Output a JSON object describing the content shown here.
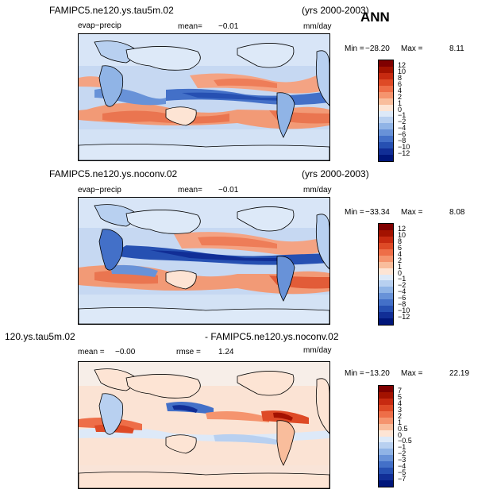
{
  "season": "ANN",
  "panels": [
    {
      "title": "FAMIPC5.ne120.ys.tau5m.02",
      "years": "(yrs 2000-2003)",
      "variable": "evap−precip",
      "stat_label": "mean=",
      "stat_value": "−0.01",
      "units": "mm/day",
      "min_label": "Min =",
      "min_value": "−28.20",
      "max_label": "Max =",
      "max_value": "8.11",
      "colorbar": [
        "12",
        "10",
        "8",
        "6",
        "4",
        "2",
        "1",
        "0",
        "−1",
        "−2",
        "−4",
        "−6",
        "−8",
        "−10",
        "−12"
      ]
    },
    {
      "title": "FAMIPC5.ne120.ys.noconv.02",
      "years": "(yrs 2000-2003)",
      "variable": "evap−precip",
      "stat_label": "mean=",
      "stat_value": "−0.01",
      "units": "mm/day",
      "min_label": "Min =",
      "min_value": "−33.34",
      "max_label": "Max =",
      "max_value": "8.08",
      "colorbar": [
        "12",
        "10",
        "8",
        "6",
        "4",
        "2",
        "1",
        "0",
        "−1",
        "−2",
        "−4",
        "−6",
        "−8",
        "−10",
        "−12"
      ]
    },
    {
      "title": "120.ys.tau5m.02",
      "title2": "- FAMIPC5.ne120.ys.noconv.02",
      "stat_label": "mean =",
      "stat_value": "−0.00",
      "rmse_label": "rmse =",
      "rmse_value": "1.24",
      "units": "mm/day",
      "min_label": "Min =",
      "min_value": "−13.20",
      "max_label": "Max =",
      "max_value": "22.19",
      "colorbar": [
        "7",
        "5",
        "4",
        "3",
        "2",
        "1",
        "0.5",
        "0",
        "−0.5",
        "−1",
        "−2",
        "−3",
        "−4",
        "−5",
        "−7"
      ]
    }
  ],
  "colors": {
    "bar16": [
      "#7f0000",
      "#a31200",
      "#c72a10",
      "#de4a26",
      "#ee6e48",
      "#f5946e",
      "#f9bd9c",
      "#fde4d4",
      "#dde9f8",
      "#b8d0f0",
      "#90b4e6",
      "#6892d8",
      "#4370c8",
      "#2650b2",
      "#112e96",
      "#00167a"
    ]
  }
}
